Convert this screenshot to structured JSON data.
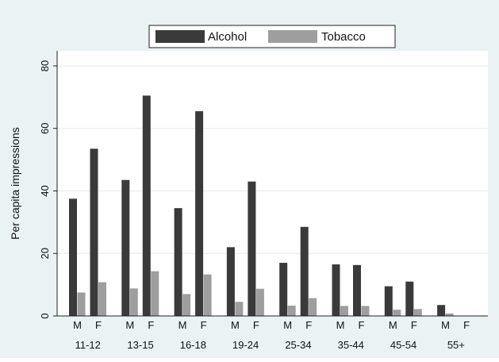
{
  "chart_data": {
    "type": "bar",
    "ylabel": "Per capita impressions",
    "ylim": [
      0,
      80
    ],
    "yticks": [
      0,
      20,
      40,
      60,
      80
    ],
    "grid": true,
    "legend_position": "top-center",
    "groups": [
      "11-12",
      "13-15",
      "16-18",
      "19-24",
      "25-34",
      "35-44",
      "45-54",
      "55+"
    ],
    "sexes": [
      "M",
      "F"
    ],
    "series": [
      {
        "name": "Alcohol",
        "color": "#3a3a3a",
        "values": [
          [
            37.5,
            53.5
          ],
          [
            43.5,
            70.5
          ],
          [
            34.5,
            65.5
          ],
          [
            22,
            43
          ],
          [
            17,
            28.5
          ],
          [
            16.5,
            16.3
          ],
          [
            9.5,
            11
          ],
          [
            3.5,
            0
          ]
        ]
      },
      {
        "name": "Tobacco",
        "color": "#9e9e9e",
        "values": [
          [
            7.5,
            10.8
          ],
          [
            8.8,
            14.3
          ],
          [
            7,
            13.3
          ],
          [
            4.5,
            8.7
          ],
          [
            3.3,
            5.7
          ],
          [
            3.2,
            3.2
          ],
          [
            2,
            2.2
          ],
          [
            0.8,
            0
          ]
        ]
      }
    ]
  },
  "colors": {
    "background": "#eaf2f3",
    "plot_background": "#ffffff",
    "grid": "#e8eeee"
  }
}
